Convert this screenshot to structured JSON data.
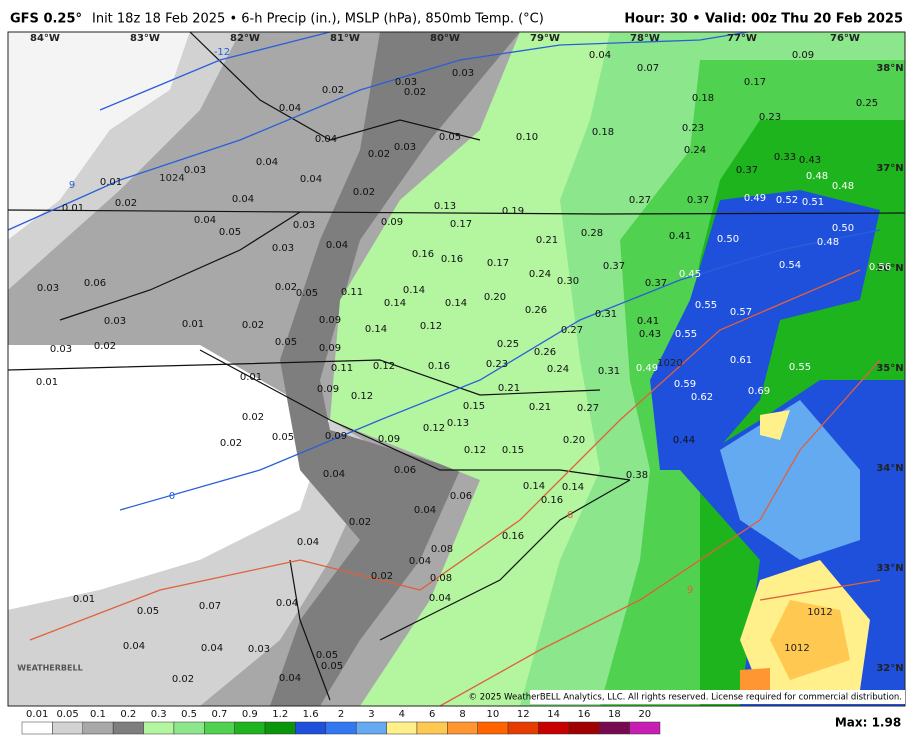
{
  "header": {
    "model": "GFS 0.25°",
    "description": "Init 18z 18 Feb 2025 • 6-h Precip (in.), MSLP (hPa), 850mb Temp. (°C)",
    "valid": "Hour: 30 • Valid: 00z Thu 20 Feb 2025"
  },
  "longitude_labels": [
    "84°W",
    "83°W",
    "82°W",
    "81°W",
    "80°W",
    "79°W",
    "78°W",
    "77°W",
    "76°W"
  ],
  "latitude_labels": [
    "38°N",
    "37°N",
    "36°N",
    "35°N",
    "34°N",
    "33°N",
    "32°N"
  ],
  "isobar_labels": [
    "1024",
    "1020",
    "1012",
    "1012"
  ],
  "temperature_labels": [
    "-12",
    "9",
    "0",
    "6",
    "9"
  ],
  "precip_labels": [
    "0.04",
    "0.07",
    "0.09",
    "0.17",
    "0.25",
    "0.18",
    "0.23",
    "0.23",
    "0.18",
    "0.10",
    "0.24",
    "0.33",
    "0.43",
    "0.37",
    "0.48",
    "0.48",
    "0.49",
    "0.52",
    "0.51",
    "0.27",
    "0.37",
    "0.05",
    "0.03",
    "0.03",
    "0.02",
    "0.02",
    "0.04",
    "0.04",
    "0.03",
    "0.02",
    "0.04",
    "0.03",
    "0.01",
    "0.04",
    "0.02",
    "0.04",
    "0.02",
    "0.01",
    "0.13",
    "0.19",
    "0.17",
    "0.09",
    "0.03",
    "0.04",
    "0.05",
    "0.03",
    "0.04",
    "0.28",
    "0.21",
    "0.41",
    "0.50",
    "0.50",
    "0.48",
    "0.16",
    "0.16",
    "0.17",
    "0.37",
    "0.45",
    "0.54",
    "0.56",
    "0.24",
    "0.30",
    "0.37",
    "0.06",
    "0.03",
    "0.02",
    "0.05",
    "0.11",
    "0.14",
    "0.14",
    "0.14",
    "0.20",
    "0.26",
    "0.31",
    "0.55",
    "0.57",
    "0.03",
    "0.01",
    "0.02",
    "0.09",
    "0.14",
    "0.12",
    "0.27",
    "0.41",
    "0.43",
    "0.55",
    "0.03",
    "0.02",
    "0.05",
    "0.09",
    "0.25",
    "0.26",
    "0.01",
    "0.01",
    "0.11",
    "0.12",
    "0.16",
    "0.23",
    "0.24",
    "0.31",
    "0.49",
    "0.61",
    "0.55",
    "0.09",
    "0.21",
    "0.59",
    "0.12",
    "0.62",
    "0.69",
    "0.15",
    "0.21",
    "0.27",
    "0.02",
    "0.13",
    "0.12",
    "0.09",
    "0.09",
    "0.20",
    "0.44",
    "0.02",
    "0.05",
    "0.12",
    "0.15",
    "0.04",
    "0.06",
    "0.38",
    "0.14",
    "0.14",
    "0.16",
    "0.06",
    "0.04",
    "0.02",
    "0.16",
    "0.04",
    "0.08",
    "0.04",
    "0.02",
    "0.08",
    "0.01",
    "0.05",
    "0.07",
    "0.04",
    "0.04",
    "0.04",
    "0.04",
    "0.03",
    "0.05",
    "0.05",
    "0.02",
    "0.04"
  ],
  "colorbar": {
    "labels": [
      "0.01",
      "0.05",
      "0.1",
      "0.2",
      "0.3",
      "0.5",
      "0.7",
      "0.9",
      "1.2",
      "1.6",
      "2",
      "3",
      "4",
      "6",
      "8",
      "10",
      "12",
      "14",
      "16",
      "18",
      "20"
    ],
    "colors": [
      "#ffffff",
      "#d2d2d2",
      "#a8a8a8",
      "#7e7e7e",
      "#b4f5a0",
      "#8ce68c",
      "#50d250",
      "#1eb41e",
      "#0a960a",
      "#1e50dc",
      "#3278f0",
      "#64aaf0",
      "#fff08c",
      "#ffc850",
      "#ff9632",
      "#ff6400",
      "#e63c00",
      "#c80000",
      "#a00000",
      "#780a50",
      "#c81eb4"
    ]
  },
  "max": "Max: 1.98",
  "logo": "WEATHERBELL",
  "copyright": "© 2025 WeatherBELL Analytics, LLC. All rights reserved. License required for commercial distribution."
}
